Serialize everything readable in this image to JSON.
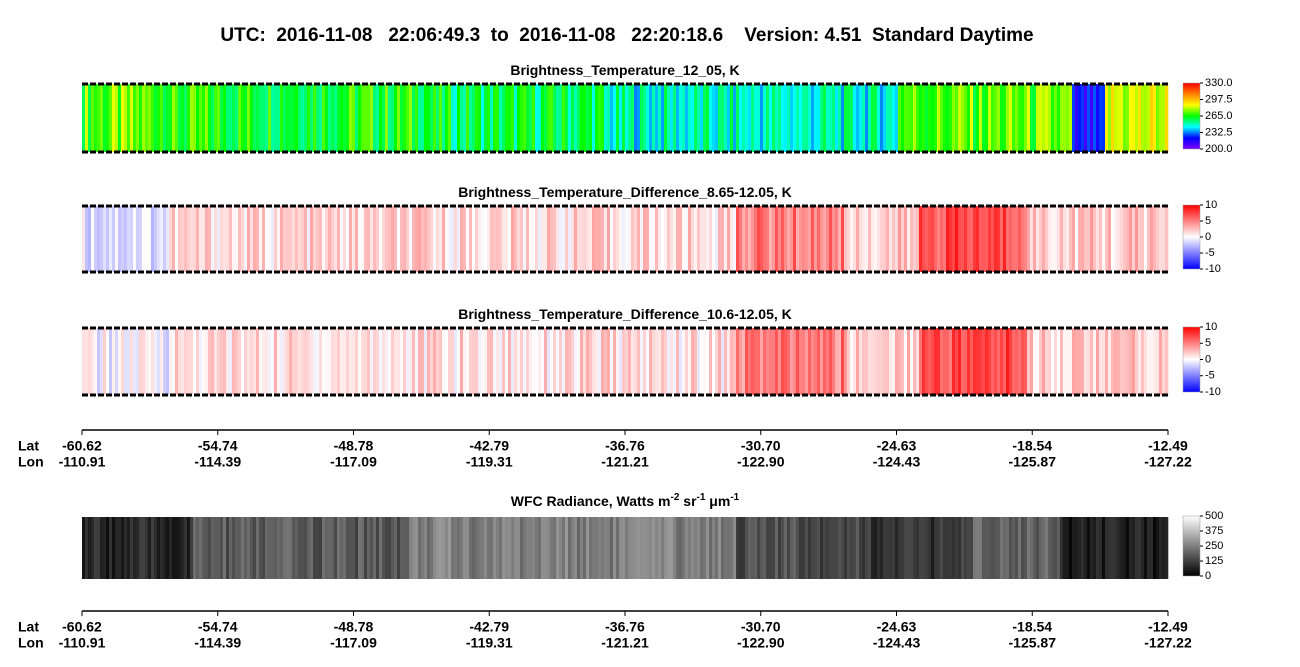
{
  "title": "UTC:  2016-11-08   22:06:49.3  to  2016-11-08   22:20:18.6    Version: 4.51  Standard Daytime",
  "chart_data": [
    {
      "type": "strip",
      "title": [
        "Brightness_Temperature_12_05, K"
      ],
      "colormap": [
        "#7f00ff",
        "#0000ff",
        "#00ffff",
        "#00ff00",
        "#ffff00",
        "#ff8000",
        "#ff0000"
      ],
      "clim": [
        200,
        330
      ],
      "cticks": [
        {
          "value": 200,
          "label": "200.0"
        },
        232.5,
        {
          "value": 265,
          "label": "265.0"
        },
        297.5,
        {
          "value": 330,
          "label": "330.0"
        }
      ]
    },
    {
      "type": "strip",
      "title": [
        "Brightness_Temperature_Difference_8.65-12.05, K"
      ],
      "colormap": [
        "#0000ff",
        "#ffffff",
        "#ff0000"
      ],
      "clim": [
        -10,
        10
      ],
      "cticks": [
        -10,
        -5,
        0,
        5,
        10
      ]
    },
    {
      "type": "strip",
      "title": [
        "Brightness_Temperature_Difference_10.6-12.05, K"
      ],
      "colormap": [
        "#0000ff",
        "#ffffff",
        "#ff0000"
      ],
      "clim": [
        -10,
        10
      ],
      "cticks": [
        -10,
        -5,
        0,
        5,
        10
      ]
    },
    {
      "type": "strip",
      "title": [
        "WFC Radiance, Watts m",
        "-2",
        " sr",
        "-1",
        " μm",
        "-1"
      ],
      "colormap": [
        "#000000",
        "#ffffff"
      ],
      "clim": [
        0,
        500
      ],
      "cticks": [
        0,
        125,
        250,
        375,
        500
      ]
    }
  ],
  "axes": [
    {
      "lat_label": "Lat",
      "lon_label": "Lon",
      "lat": [
        -60.62,
        -54.74,
        -48.78,
        -42.79,
        -36.76,
        {
          "value": -30.7,
          "label": "-30.70"
        },
        -24.63,
        -18.54,
        -12.49
      ],
      "lon": [
        -110.91,
        -114.39,
        -117.09,
        -119.31,
        -121.21,
        {
          "value": -122.9,
          "label": "-122.90"
        },
        -124.43,
        -125.87,
        -127.22
      ]
    },
    {
      "lat_label": "Lat",
      "lon_label": "Lon",
      "lat": [
        -60.62,
        -54.74,
        -48.78,
        -42.79,
        -36.76,
        {
          "value": -30.7,
          "label": "-30.70"
        },
        -24.63,
        -18.54,
        -12.49
      ],
      "lon": [
        -110.91,
        -114.39,
        -117.09,
        -119.31,
        -121.21,
        {
          "value": -122.9,
          "label": "-122.90"
        },
        -124.43,
        -125.87,
        -127.22
      ]
    }
  ]
}
